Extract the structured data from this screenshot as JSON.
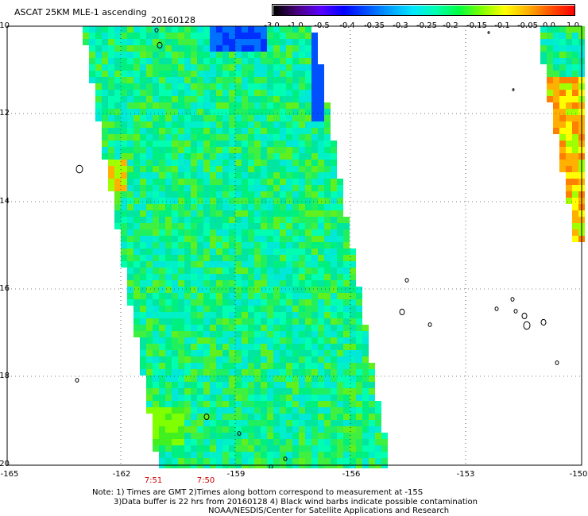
{
  "header": {
    "title": "ASCAT 25KM MLE-1 ascending",
    "date": "20160128"
  },
  "colorbar": {
    "labels": [
      "-3.0",
      "-1.0",
      "-0.5",
      "-0.4",
      "-0.35",
      "-0.3",
      "-0.25",
      "-0.2",
      "-0.15",
      "-0.1",
      "-0.05",
      "0.0",
      "1.0"
    ],
    "colors": [
      "#000000",
      "#4a0080",
      "#5a00ff",
      "#0000ff",
      "#0050ff",
      "#00a0ff",
      "#00e6ff",
      "#00ffb0",
      "#00ff40",
      "#80ff00",
      "#ffff00",
      "#ffb000",
      "#ff5000",
      "#ff0000"
    ]
  },
  "map": {
    "lat_labels": [
      "-10",
      "-12",
      "-14",
      "-16",
      "-18",
      "-20"
    ],
    "lon_labels": [
      "-165",
      "-162",
      "-159",
      "-156",
      "-153",
      "-150"
    ],
    "time_labels": [
      "7:51",
      "7:50"
    ],
    "lat_range": [
      -20,
      -10
    ],
    "lon_range": [
      -165,
      -150
    ]
  },
  "notes": {
    "line1": "Note: 1) Times are GMT 2)Times along bottom correspond to measurement at -15S",
    "line2": "3)Data buffer is 22 hrs from 20160128 4) Black wind barbs indicate possible contamination",
    "line3": "NOAA/NESDIS/Center for Satellite Applications and Research"
  }
}
